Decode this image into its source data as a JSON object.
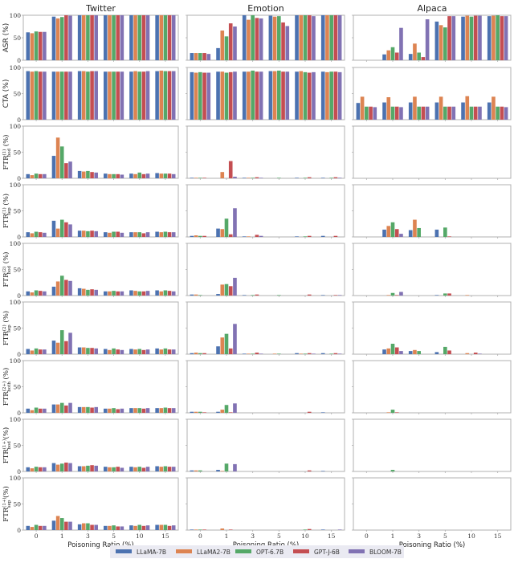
{
  "colors": {
    "LLaMA-7B": "#4c72b0",
    "LLaMA2-7B": "#dd8452",
    "OPT-6.7B": "#55a868",
    "GPT-J-6B": "#c44e52",
    "BLOOM-7B": "#8172b3",
    "axis": "#b0b0b0",
    "legend_bg": "#eaeaf2"
  },
  "chart_data": {
    "type": "bar",
    "layout": "grid 9 rows x 3 columns of grouped bar charts",
    "columns": [
      "Twitter",
      "Emotion",
      "Alpaca"
    ],
    "rows": [
      {
        "key": "asr",
        "ylabel": "ASR (%)"
      },
      {
        "key": "cta",
        "ylabel": "CTA (%)"
      },
      {
        "key": "ftr1_bod",
        "ylabel": "FTR(1)bod (%)",
        "base": "FTR",
        "sup": "(1)",
        "sub": "bod"
      },
      {
        "key": "ftr1_sep",
        "ylabel": "FTR(1)sep (%)",
        "base": "FTR",
        "sup": "(1)",
        "sub": "sep"
      },
      {
        "key": "ftr2_bod",
        "ylabel": "FTR(2)bod (%)",
        "base": "FTR",
        "sup": "(2)",
        "sub": "bod"
      },
      {
        "key": "ftr2_sep",
        "ylabel": "FTR(2)sep (%)",
        "base": "FTR",
        "sup": "(2)",
        "sub": "sep"
      },
      {
        "key": "ftr2p_both",
        "ylabel": "FTR(2+)both (%)",
        "base": "FTR",
        "sup": "(2+)",
        "sub": "both"
      },
      {
        "key": "ftr1p_bod",
        "ylabel": "FTR(1+)bod (%)",
        "base": "FTR",
        "sup": "(1+)",
        "sub": "bod"
      },
      {
        "key": "ftr1p_sep",
        "ylabel": "FTR(1+)sep (%)",
        "base": "FTR",
        "sup": "(1+)",
        "sub": "sep"
      }
    ],
    "categories": [
      "0",
      "1",
      "3",
      "5",
      "10",
      "15"
    ],
    "xlabel": "Poisoning Ratio (%)",
    "ylim": [
      0,
      100
    ],
    "yticks": [
      "0",
      "50",
      "100"
    ],
    "legend": [
      "LLaMA-7B",
      "LLaMA2-7B",
      "OPT-6.7B",
      "GPT-J-6B",
      "BLOOM-7B"
    ],
    "legend_position": "bottom center",
    "series_order": [
      "LLaMA-7B",
      "LLaMA2-7B",
      "OPT-6.7B",
      "GPT-J-6B",
      "BLOOM-7B"
    ],
    "panels": {
      "Twitter": {
        "asr": [
          [
            62,
            60,
            64,
            63,
            63
          ],
          [
            97,
            93,
            96,
            100,
            99
          ],
          [
            100,
            100,
            100,
            100,
            100
          ],
          [
            100,
            100,
            100,
            100,
            100
          ],
          [
            100,
            100,
            100,
            100,
            100
          ],
          [
            100,
            100,
            100,
            100,
            100
          ]
        ],
        "cta": [
          [
            93,
            92,
            93,
            92,
            92
          ],
          [
            92,
            92,
            92,
            92,
            92
          ],
          [
            93,
            93,
            92,
            93,
            93
          ],
          [
            92,
            92,
            92,
            92,
            92
          ],
          [
            92,
            93,
            92,
            92,
            93
          ],
          [
            93,
            94,
            93,
            93,
            93
          ]
        ],
        "ftr1_bod": [
          [
            8,
            6,
            9,
            8,
            8
          ],
          [
            43,
            78,
            61,
            29,
            32
          ],
          [
            14,
            13,
            14,
            12,
            11
          ],
          [
            9,
            8,
            8,
            8,
            7
          ],
          [
            9,
            8,
            11,
            8,
            9
          ],
          [
            10,
            9,
            9,
            9,
            8
          ]
        ],
        "ftr1_sep": [
          [
            9,
            7,
            10,
            9,
            8
          ],
          [
            31,
            16,
            33,
            28,
            24
          ],
          [
            12,
            12,
            11,
            12,
            11
          ],
          [
            9,
            8,
            10,
            10,
            8
          ],
          [
            9,
            9,
            9,
            7,
            9
          ],
          [
            10,
            9,
            10,
            9,
            9
          ]
        ],
        "ftr2_bod": [
          [
            8,
            6,
            10,
            9,
            8
          ],
          [
            17,
            27,
            38,
            30,
            28
          ],
          [
            14,
            13,
            11,
            12,
            11
          ],
          [
            8,
            8,
            9,
            8,
            8
          ],
          [
            10,
            9,
            8,
            8,
            9
          ],
          [
            10,
            8,
            10,
            9,
            8
          ]
        ],
        "ftr2_sep": [
          [
            10,
            7,
            11,
            9,
            9
          ],
          [
            26,
            22,
            46,
            25,
            41
          ],
          [
            13,
            13,
            12,
            12,
            11
          ],
          [
            10,
            8,
            11,
            9,
            8
          ],
          [
            10,
            9,
            10,
            8,
            9
          ],
          [
            11,
            9,
            11,
            9,
            9
          ]
        ],
        "ftr2p_both": [
          [
            8,
            5,
            10,
            8,
            8
          ],
          [
            16,
            16,
            19,
            14,
            19
          ],
          [
            11,
            11,
            11,
            10,
            11
          ],
          [
            8,
            8,
            9,
            7,
            8
          ],
          [
            9,
            9,
            9,
            8,
            9
          ],
          [
            9,
            9,
            10,
            9,
            9
          ]
        ],
        "ftr1p_bod": [
          [
            8,
            6,
            9,
            8,
            8
          ],
          [
            16,
            13,
            15,
            17,
            16
          ],
          [
            10,
            10,
            11,
            12,
            11
          ],
          [
            9,
            8,
            8,
            9,
            7
          ],
          [
            9,
            8,
            9,
            7,
            9
          ],
          [
            10,
            9,
            10,
            9,
            9
          ]
        ],
        "ftr1p_sep": [
          [
            8,
            6,
            10,
            8,
            8
          ],
          [
            18,
            27,
            23,
            16,
            16
          ],
          [
            11,
            13,
            13,
            10,
            10
          ],
          [
            8,
            8,
            9,
            7,
            7
          ],
          [
            9,
            8,
            10,
            8,
            9
          ],
          [
            10,
            10,
            10,
            8,
            9
          ]
        ]
      },
      "Emotion": {
        "asr": [
          [
            16,
            16,
            16,
            16,
            14
          ],
          [
            27,
            66,
            53,
            82,
            75
          ],
          [
            100,
            90,
            100,
            94,
            93
          ],
          [
            99,
            97,
            98,
            84,
            76
          ],
          [
            100,
            100,
            100,
            100,
            98
          ],
          [
            100,
            100,
            100,
            100,
            100
          ]
        ],
        "cta": [
          [
            91,
            90,
            91,
            90,
            90
          ],
          [
            92,
            92,
            90,
            91,
            92
          ],
          [
            92,
            92,
            94,
            92,
            92
          ],
          [
            93,
            93,
            94,
            92,
            92
          ],
          [
            92,
            93,
            91,
            90,
            91
          ],
          [
            92,
            91,
            92,
            92,
            91
          ]
        ],
        "ftr1_bod": [
          [
            1,
            1,
            1,
            1,
            0
          ],
          [
            0,
            12,
            0,
            33,
            3
          ],
          [
            1,
            1,
            1,
            2,
            1
          ],
          [
            0,
            0,
            1,
            0,
            0
          ],
          [
            1,
            0,
            1,
            2,
            0
          ],
          [
            1,
            0,
            1,
            2,
            1
          ]
        ],
        "ftr1_sep": [
          [
            2,
            3,
            2,
            2,
            0
          ],
          [
            16,
            15,
            35,
            5,
            55
          ],
          [
            1,
            1,
            0,
            4,
            2
          ],
          [
            0,
            0,
            0,
            0,
            0
          ],
          [
            1,
            0,
            1,
            2,
            0
          ],
          [
            2,
            0,
            0,
            2,
            0
          ]
        ],
        "ftr2_bod": [
          [
            2,
            2,
            1,
            0,
            0
          ],
          [
            3,
            21,
            22,
            18,
            34
          ],
          [
            1,
            0,
            1,
            2,
            0
          ],
          [
            0,
            0,
            1,
            0,
            0
          ],
          [
            0,
            0,
            0,
            2,
            0
          ],
          [
            1,
            0,
            0,
            1,
            1
          ]
        ],
        "ftr2_sep": [
          [
            2,
            3,
            2,
            2,
            0
          ],
          [
            15,
            32,
            39,
            11,
            58
          ],
          [
            1,
            1,
            1,
            3,
            1
          ],
          [
            0,
            1,
            1,
            0,
            0
          ],
          [
            2,
            1,
            1,
            2,
            1
          ],
          [
            2,
            0,
            1,
            2,
            1
          ]
        ],
        "ftr2p_both": [
          [
            2,
            2,
            2,
            1,
            0
          ],
          [
            2,
            6,
            15,
            1,
            18
          ],
          [
            0,
            0,
            0,
            0,
            0
          ],
          [
            0,
            0,
            0,
            0,
            0
          ],
          [
            0,
            0,
            0,
            2,
            0
          ],
          [
            1,
            0,
            0,
            0,
            0
          ]
        ],
        "ftr1p_bod": [
          [
            2,
            2,
            2,
            0,
            0
          ],
          [
            3,
            1,
            15,
            0,
            14
          ],
          [
            0,
            0,
            0,
            0,
            0
          ],
          [
            0,
            0,
            0,
            0,
            0
          ],
          [
            0,
            0,
            0,
            2,
            0
          ],
          [
            1,
            0,
            0,
            0,
            0
          ]
        ],
        "ftr1p_sep": [
          [
            1,
            1,
            1,
            1,
            0
          ],
          [
            0,
            3,
            0,
            1,
            0
          ],
          [
            0,
            0,
            0,
            0,
            0
          ],
          [
            0,
            0,
            0,
            0,
            0
          ],
          [
            0,
            0,
            1,
            2,
            0
          ],
          [
            1,
            0,
            0,
            0,
            1
          ]
        ]
      },
      "Alpaca": {
        "asr": [
          [
            0,
            0,
            0,
            0,
            0
          ],
          [
            13,
            22,
            29,
            17,
            72
          ],
          [
            14,
            37,
            17,
            7,
            91
          ],
          [
            86,
            78,
            73,
            98,
            98
          ],
          [
            97,
            99,
            97,
            99,
            99
          ],
          [
            98,
            99,
            100,
            98,
            98
          ]
        ],
        "cta": [
          [
            32,
            44,
            25,
            25,
            24
          ],
          [
            33,
            43,
            25,
            25,
            24
          ],
          [
            33,
            44,
            25,
            25,
            25
          ],
          [
            33,
            44,
            25,
            25,
            25
          ],
          [
            33,
            45,
            25,
            25,
            25
          ],
          [
            33,
            44,
            25,
            25,
            24
          ]
        ],
        "ftr1_bod": [
          [
            0,
            0,
            0,
            0,
            0
          ],
          [
            0,
            0,
            0,
            0,
            0
          ],
          [
            0,
            0,
            0,
            0,
            0
          ],
          [
            0,
            0,
            0,
            0,
            0
          ],
          [
            0,
            0,
            0,
            0,
            0
          ],
          [
            0,
            0,
            0,
            0,
            0
          ]
        ],
        "ftr1_sep": [
          [
            0,
            0,
            0,
            0,
            0
          ],
          [
            14,
            21,
            28,
            15,
            6
          ],
          [
            13,
            33,
            17,
            0,
            0
          ],
          [
            14,
            0,
            18,
            1,
            0
          ],
          [
            0,
            0,
            0,
            0,
            0
          ],
          [
            0,
            0,
            0,
            0,
            0
          ]
        ],
        "ftr2_bod": [
          [
            0,
            0,
            0,
            0,
            0
          ],
          [
            0,
            1,
            5,
            1,
            7
          ],
          [
            0,
            0,
            0,
            0,
            0
          ],
          [
            1,
            0,
            4,
            4,
            0
          ],
          [
            0,
            1,
            0,
            0,
            0
          ],
          [
            0,
            0,
            0,
            0,
            0
          ]
        ],
        "ftr2_sep": [
          [
            0,
            0,
            0,
            0,
            0
          ],
          [
            9,
            11,
            20,
            13,
            6
          ],
          [
            6,
            8,
            6,
            0,
            0
          ],
          [
            4,
            0,
            14,
            7,
            0
          ],
          [
            0,
            2,
            0,
            3,
            1
          ],
          [
            0,
            0,
            0,
            0,
            0
          ]
        ],
        "ftr2p_both": [
          [
            0,
            0,
            0,
            0,
            0
          ],
          [
            0,
            1,
            6,
            1,
            0
          ],
          [
            0,
            0,
            0,
            0,
            0
          ],
          [
            0,
            0,
            0,
            0,
            0
          ],
          [
            0,
            0,
            0,
            0,
            0
          ],
          [
            0,
            0,
            0,
            0,
            0
          ]
        ],
        "ftr1p_bod": [
          [
            0,
            0,
            0,
            0,
            0
          ],
          [
            0,
            0,
            3,
            0,
            0
          ],
          [
            0,
            0,
            0,
            0,
            0
          ],
          [
            0,
            0,
            0,
            0,
            0
          ],
          [
            0,
            0,
            0,
            0,
            0
          ],
          [
            0,
            0,
            0,
            0,
            0
          ]
        ],
        "ftr1p_sep": [
          [
            0,
            0,
            0,
            0,
            0
          ],
          [
            0,
            0,
            0,
            0,
            0
          ],
          [
            0,
            0,
            0,
            0,
            0
          ],
          [
            0,
            0,
            0,
            0,
            0
          ],
          [
            0,
            0,
            0,
            0,
            0
          ],
          [
            0,
            0,
            0,
            0,
            0
          ]
        ]
      }
    }
  }
}
